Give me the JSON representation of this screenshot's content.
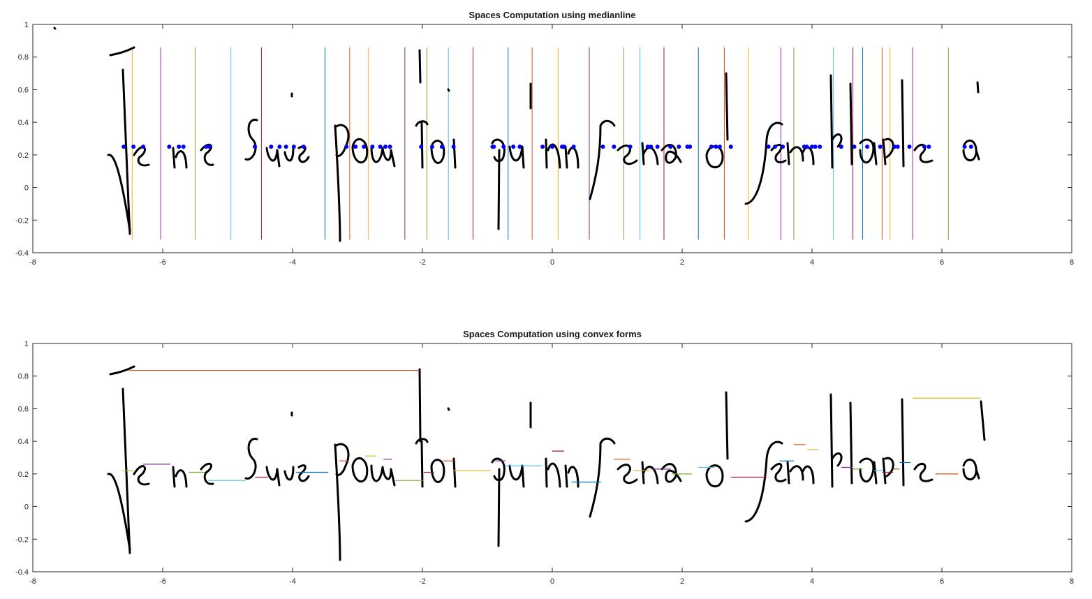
{
  "chart_data": [
    {
      "type": "line",
      "title": "Spaces Computation using medianline",
      "xlim": [
        -8,
        8
      ],
      "ylim": [
        -0.4,
        1
      ],
      "xticks": [
        "-8",
        "-6",
        "-4",
        "-2",
        "0",
        "2",
        "4",
        "6",
        "8"
      ],
      "yticks": [
        "-0.4",
        "-0.2",
        "0",
        "0.2",
        "0.4",
        "0.6",
        "0.8",
        "1"
      ],
      "median_line_y": 0.25,
      "vertical_separators": {
        "y_range": [
          -0.32,
          0.86
        ],
        "x": [
          -6.47,
          -6.03,
          -5.5,
          -4.95,
          -4.48,
          -3.5,
          -3.12,
          -2.83,
          -2.27,
          -1.93,
          -1.6,
          -1.22,
          -0.68,
          -0.31,
          0.09,
          0.57,
          1.1,
          1.35,
          1.72,
          2.25,
          2.65,
          3.02,
          3.52,
          3.72,
          4.33,
          4.63,
          4.78,
          5.08,
          5.2,
          5.55,
          6.1
        ],
        "colors": [
          "#EDB120",
          "#7E2F8E",
          "#77AC30",
          "#4DBEEE",
          "#A2142F",
          "#0072BD",
          "#D95319",
          "#EDB120",
          "#7E2F8E",
          "#77AC30",
          "#4DBEEE",
          "#A2142F",
          "#0072BD",
          "#D95319",
          "#EDB120",
          "#7E2F8E",
          "#77AC30",
          "#4DBEEE",
          "#A2142F",
          "#0072BD",
          "#D95319",
          "#EDB120",
          "#7E2F8E",
          "#77AC30",
          "#4DBEEE",
          "#A2142F",
          "#0072BD",
          "#D95319",
          "#EDB120",
          "#7E2F8E",
          "#77AC30"
        ]
      },
      "median_points": {
        "y": 0.25,
        "x": [
          -6.6,
          -6.45,
          -6.3,
          -5.9,
          -5.75,
          -5.68,
          -5.33,
          -5.28,
          -4.58,
          -4.33,
          -4.2,
          -4.1,
          -3.98,
          -3.83,
          -3.17,
          -3.03,
          -2.9,
          -2.77,
          -2.65,
          -2.57,
          -2.5,
          -2.02,
          -1.85,
          -1.7,
          -1.52,
          -0.92,
          -0.9,
          -0.75,
          -0.6,
          -0.5,
          -0.5,
          -0.15,
          0.0,
          0.15,
          0.18,
          0.33,
          0.78,
          0.95,
          1.2,
          1.47,
          1.52,
          1.62,
          1.82,
          1.95,
          2.08,
          2.12,
          2.45,
          2.52,
          2.58,
          2.75,
          3.33,
          3.43,
          3.55,
          3.88,
          3.92,
          4.0,
          4.05,
          4.12,
          4.45,
          4.65,
          4.85,
          5.05,
          5.27,
          5.32,
          5.5,
          5.73,
          5.8,
          6.35,
          6.45
        ],
        "color": "#0000FF"
      }
    },
    {
      "type": "line",
      "title": "Spaces Computation using convex forms",
      "xlim": [
        -8,
        8
      ],
      "ylim": [
        -0.4,
        1
      ],
      "xticks": [
        "-8",
        "-6",
        "-4",
        "-2",
        "0",
        "2",
        "4",
        "6",
        "8"
      ],
      "yticks": [
        "-0.4",
        "-0.2",
        "0",
        "0.2",
        "0.4",
        "0.6",
        "0.8",
        "1"
      ],
      "space_segments": [
        {
          "x": [
            -6.52,
            -2.05
          ],
          "y": 0.835,
          "color": "#D95319"
        },
        {
          "x": [
            -6.62,
            -6.45
          ],
          "y": 0.22,
          "color": "#EDB120"
        },
        {
          "x": [
            -6.3,
            -5.88
          ],
          "y": 0.26,
          "color": "#7E2F8E"
        },
        {
          "x": [
            -5.6,
            -5.35
          ],
          "y": 0.21,
          "color": "#77AC30"
        },
        {
          "x": [
            -5.3,
            -4.72
          ],
          "y": 0.16,
          "color": "#4DBEEE"
        },
        {
          "x": [
            -4.58,
            -4.38
          ],
          "y": 0.18,
          "color": "#A2142F"
        },
        {
          "x": [
            -3.95,
            -3.45
          ],
          "y": 0.21,
          "color": "#0072BD"
        },
        {
          "x": [
            -3.28,
            -3.15
          ],
          "y": 0.28,
          "color": "#D95319"
        },
        {
          "x": [
            -2.88,
            -2.72
          ],
          "y": 0.31,
          "color": "#EDB120"
        },
        {
          "x": [
            -2.6,
            -2.47
          ],
          "y": 0.29,
          "color": "#7E2F8E"
        },
        {
          "x": [
            -2.42,
            -1.98
          ],
          "y": 0.16,
          "color": "#77AC30"
        },
        {
          "x": [
            -1.98,
            -1.82
          ],
          "y": 0.21,
          "color": "#A2142F"
        },
        {
          "x": [
            -1.68,
            -1.52
          ],
          "y": 0.28,
          "color": "#D95319"
        },
        {
          "x": [
            -1.52,
            -0.95
          ],
          "y": 0.22,
          "color": "#EDB120"
        },
        {
          "x": [
            -0.88,
            -0.72
          ],
          "y": 0.28,
          "color": "#7E2F8E"
        },
        {
          "x": [
            -0.72,
            -0.15
          ],
          "y": 0.25,
          "color": "#4DBEEE"
        },
        {
          "x": [
            0.0,
            0.18
          ],
          "y": 0.34,
          "color": "#A2142F"
        },
        {
          "x": [
            0.3,
            0.75
          ],
          "y": 0.15,
          "color": "#0072BD"
        },
        {
          "x": [
            0.95,
            1.2
          ],
          "y": 0.29,
          "color": "#D95319"
        },
        {
          "x": [
            1.25,
            1.5
          ],
          "y": 0.22,
          "color": "#EDB120"
        },
        {
          "x": [
            1.52,
            1.82
          ],
          "y": 0.23,
          "color": "#7E2F8E"
        },
        {
          "x": [
            1.85,
            2.15
          ],
          "y": 0.2,
          "color": "#77AC30"
        },
        {
          "x": [
            2.25,
            2.5
          ],
          "y": 0.24,
          "color": "#4DBEEE"
        },
        {
          "x": [
            2.75,
            3.3
          ],
          "y": 0.18,
          "color": "#A2142F"
        },
        {
          "x": [
            3.5,
            3.72
          ],
          "y": 0.28,
          "color": "#0072BD"
        },
        {
          "x": [
            3.72,
            3.9
          ],
          "y": 0.38,
          "color": "#D95319"
        },
        {
          "x": [
            3.92,
            4.1
          ],
          "y": 0.35,
          "color": "#EDB120"
        },
        {
          "x": [
            4.45,
            4.62
          ],
          "y": 0.24,
          "color": "#7E2F8E"
        },
        {
          "x": [
            4.62,
            4.78
          ],
          "y": 0.23,
          "color": "#77AC30"
        },
        {
          "x": [
            4.95,
            5.1
          ],
          "y": 0.22,
          "color": "#4DBEEE"
        },
        {
          "x": [
            5.08,
            5.25
          ],
          "y": 0.21,
          "color": "#A2142F"
        },
        {
          "x": [
            5.25,
            5.35
          ],
          "y": 0.23,
          "color": "#D95319"
        },
        {
          "x": [
            5.35,
            5.52
          ],
          "y": 0.27,
          "color": "#0072BD"
        },
        {
          "x": [
            5.55,
            6.6
          ],
          "y": 0.665,
          "color": "#EDB120"
        },
        {
          "x": [
            5.9,
            6.25
          ],
          "y": 0.2,
          "color": "#D95319"
        }
      ]
    }
  ]
}
